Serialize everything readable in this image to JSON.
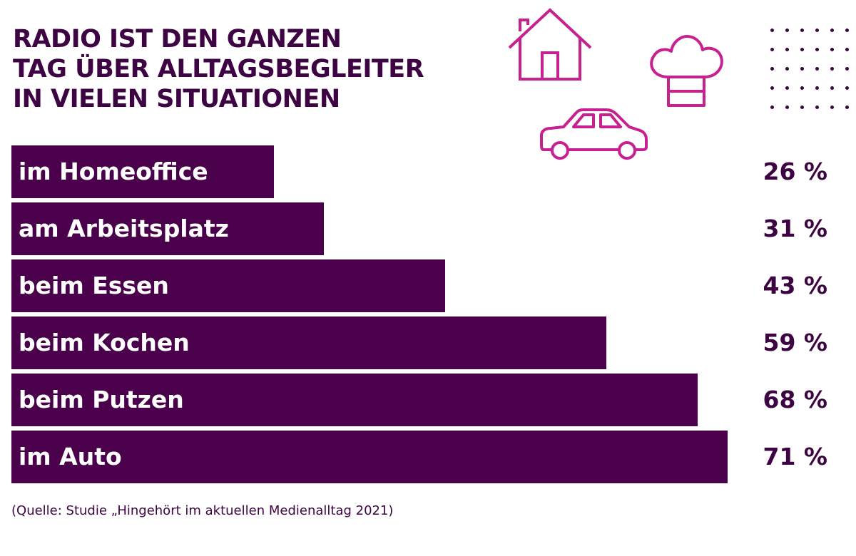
{
  "title_lines": [
    "RADIO IST DEN GANZEN",
    "TAG ÜBER ALLTAGSBEGLEITER",
    "IN VIELEN SITUATIONEN"
  ],
  "source": "(Quelle: Studie „Hingehört im aktuellen Medienalltag 2021)",
  "colors": {
    "bar": "#4a004b",
    "text_dark": "#3d0342",
    "icon": "#c7208f"
  },
  "icons": [
    "house-icon",
    "chef-hat-icon",
    "car-icon",
    "dot-grid-decoration"
  ],
  "chart_data": {
    "type": "bar",
    "orientation": "horizontal",
    "categories": [
      "im Homeoffice",
      "am Arbeitsplatz",
      "beim Essen",
      "beim Kochen",
      "beim Putzen",
      "im Auto"
    ],
    "values": [
      26,
      31,
      43,
      59,
      68,
      71
    ],
    "value_labels": [
      "26 %",
      "31 %",
      "43 %",
      "59 %",
      "68 %",
      "71 %"
    ],
    "unit": "%",
    "xlim": [
      0,
      100
    ],
    "grid": false
  }
}
